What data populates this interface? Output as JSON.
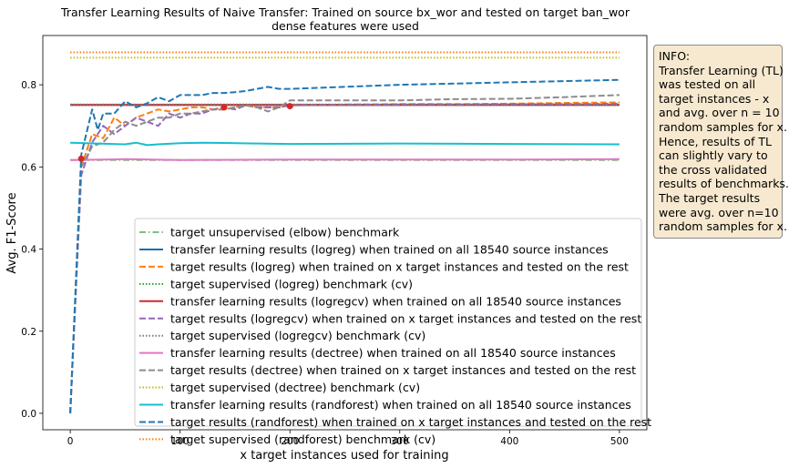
{
  "chart_data": {
    "type": "line",
    "title": "Transfer Learning Results of Naive Transfer: Trained on source bx_wor and tested on target ban_wor",
    "subtitle": "dense features were used",
    "xlabel": "x target instances used for training",
    "ylabel": "Avg. F1-Score",
    "xlim": [
      -25,
      525
    ],
    "ylim": [
      -0.04,
      0.92
    ],
    "xticks": [
      0,
      100,
      200,
      300,
      400,
      500
    ],
    "xtick_labels": [
      "0",
      "100",
      "200",
      "300",
      "400",
      "500"
    ],
    "yticks": [
      0.0,
      0.2,
      0.4,
      0.6,
      0.8
    ],
    "ytick_labels": [
      "0.0",
      "0.2",
      "0.4",
      "0.6",
      "0.8"
    ],
    "grid": false,
    "legend_position": "lower-right",
    "series": [
      {
        "name": "target unsupervised (elbow) benchmark",
        "style": "dashdot",
        "color": "#7fbf7f",
        "x": [
          0,
          500
        ],
        "y": [
          0.617,
          0.617
        ]
      },
      {
        "name": "transfer learning results (logreg) when trained on all 18540 source instances",
        "style": "solid",
        "color": "#1f6fa8",
        "x": [
          0,
          500
        ],
        "y": [
          0.751,
          0.751
        ]
      },
      {
        "name": "target results (logreg) when trained on x target instances and tested on the rest",
        "style": "dashed",
        "color": "#ff7f0e",
        "x": [
          0,
          10,
          20,
          30,
          40,
          50,
          60,
          70,
          80,
          90,
          100,
          110,
          120,
          130,
          140,
          150,
          160,
          170,
          180,
          190,
          200,
          250,
          300,
          350,
          400,
          450,
          500
        ],
        "y": [
          0.0,
          0.6,
          0.68,
          0.67,
          0.72,
          0.7,
          0.72,
          0.73,
          0.74,
          0.735,
          0.74,
          0.745,
          0.745,
          0.74,
          0.74,
          0.745,
          0.75,
          0.745,
          0.745,
          0.745,
          0.75,
          0.752,
          0.753,
          0.753,
          0.754,
          0.756,
          0.757
        ]
      },
      {
        "name": "target supervised (logreg) benchmark (cv)",
        "style": "dotted",
        "color": "#2ca02c",
        "x": [
          0,
          500
        ],
        "y": [
          0.752,
          0.752
        ]
      },
      {
        "name": "transfer learning results (logregcv) when trained on all 18540 source instances",
        "style": "solid",
        "color": "#d62728",
        "x": [
          0,
          500
        ],
        "y": [
          0.751,
          0.751
        ]
      },
      {
        "name": "target results (logregcv) when trained on x target instances and tested on the rest",
        "style": "dashed",
        "color": "#9467bd",
        "x": [
          0,
          10,
          20,
          30,
          40,
          50,
          60,
          70,
          80,
          90,
          100,
          110,
          120,
          130,
          140,
          150,
          160,
          170,
          180,
          190,
          200,
          250,
          300,
          350,
          400,
          450,
          500
        ],
        "y": [
          0.0,
          0.58,
          0.66,
          0.7,
          0.68,
          0.7,
          0.72,
          0.71,
          0.7,
          0.73,
          0.72,
          0.73,
          0.73,
          0.74,
          0.745,
          0.74,
          0.75,
          0.745,
          0.745,
          0.745,
          0.75,
          0.751,
          0.752,
          0.752,
          0.753,
          0.753,
          0.754
        ]
      },
      {
        "name": "target supervised (logregcv) benchmark (cv)",
        "style": "dotted",
        "color": "#7f7f7f",
        "x": [
          0,
          500
        ],
        "y": [
          0.751,
          0.751
        ]
      },
      {
        "name": "transfer learning results (dectree) when trained on all 18540 source instances",
        "style": "solid",
        "color": "#e377c2",
        "x": [
          0,
          50,
          100,
          200,
          300,
          400,
          500
        ],
        "y": [
          0.617,
          0.619,
          0.617,
          0.618,
          0.618,
          0.618,
          0.619
        ]
      },
      {
        "name": "target results (dectree) when trained on x target instances and tested on the rest",
        "style": "dashed",
        "color": "#8c8c8c",
        "x": [
          0,
          10,
          20,
          30,
          40,
          50,
          60,
          70,
          80,
          90,
          100,
          110,
          120,
          130,
          140,
          150,
          160,
          170,
          180,
          190,
          200,
          250,
          300,
          350,
          400,
          450,
          500
        ],
        "y": [
          0.0,
          0.6,
          0.65,
          0.66,
          0.69,
          0.71,
          0.7,
          0.71,
          0.72,
          0.72,
          0.73,
          0.73,
          0.735,
          0.74,
          0.74,
          0.745,
          0.75,
          0.745,
          0.735,
          0.745,
          0.762,
          0.762,
          0.762,
          0.765,
          0.766,
          0.77,
          0.775
        ]
      },
      {
        "name": "target supervised (dectree) benchmark (cv)",
        "style": "dotted",
        "color": "#bcbd22",
        "x": [
          0,
          500
        ],
        "y": [
          0.866,
          0.866
        ]
      },
      {
        "name": "transfer learning results (randforest) when trained on all 18540 source instances",
        "style": "solid",
        "color": "#17becf",
        "x": [
          0,
          50,
          60,
          70,
          80,
          100,
          120,
          150,
          200,
          300,
          400,
          500
        ],
        "y": [
          0.659,
          0.655,
          0.659,
          0.653,
          0.655,
          0.658,
          0.659,
          0.658,
          0.656,
          0.657,
          0.656,
          0.655
        ]
      },
      {
        "name": "target results (randforest) when trained on x target instances and tested on the rest",
        "style": "dashed",
        "color": "#1f77b4",
        "x": [
          0,
          10,
          20,
          25,
          30,
          40,
          50,
          60,
          70,
          80,
          90,
          100,
          110,
          120,
          130,
          140,
          150,
          160,
          170,
          180,
          190,
          200,
          250,
          300,
          350,
          400,
          450,
          500
        ],
        "y": [
          0.0,
          0.63,
          0.74,
          0.69,
          0.73,
          0.73,
          0.76,
          0.745,
          0.755,
          0.77,
          0.76,
          0.775,
          0.775,
          0.775,
          0.78,
          0.78,
          0.782,
          0.785,
          0.79,
          0.795,
          0.79,
          0.79,
          0.795,
          0.8,
          0.803,
          0.806,
          0.809,
          0.812
        ]
      },
      {
        "name": "target supervised (randforest) benchmark (cv)",
        "style": "dotted",
        "color": "#ff7f0e",
        "x": [
          0,
          500
        ],
        "y": [
          0.879,
          0.879
        ]
      }
    ],
    "markers": [
      {
        "x": 10,
        "y": 0.62,
        "color": "#d62728"
      },
      {
        "x": 140,
        "y": 0.745,
        "color": "#d62728"
      },
      {
        "x": 200,
        "y": 0.748,
        "color": "#d62728"
      }
    ]
  },
  "info_box": {
    "lines": [
      "INFO:",
      "Transfer Learning (TL)",
      "was tested on all",
      "target instances - x",
      "and avg. over n = 10",
      "random samples for x.",
      "Hence, results of TL",
      "can slightly vary to",
      "the cross validated",
      "results of benchmarks.",
      "The target results",
      "were avg. over n=10",
      "random samples for x."
    ]
  }
}
